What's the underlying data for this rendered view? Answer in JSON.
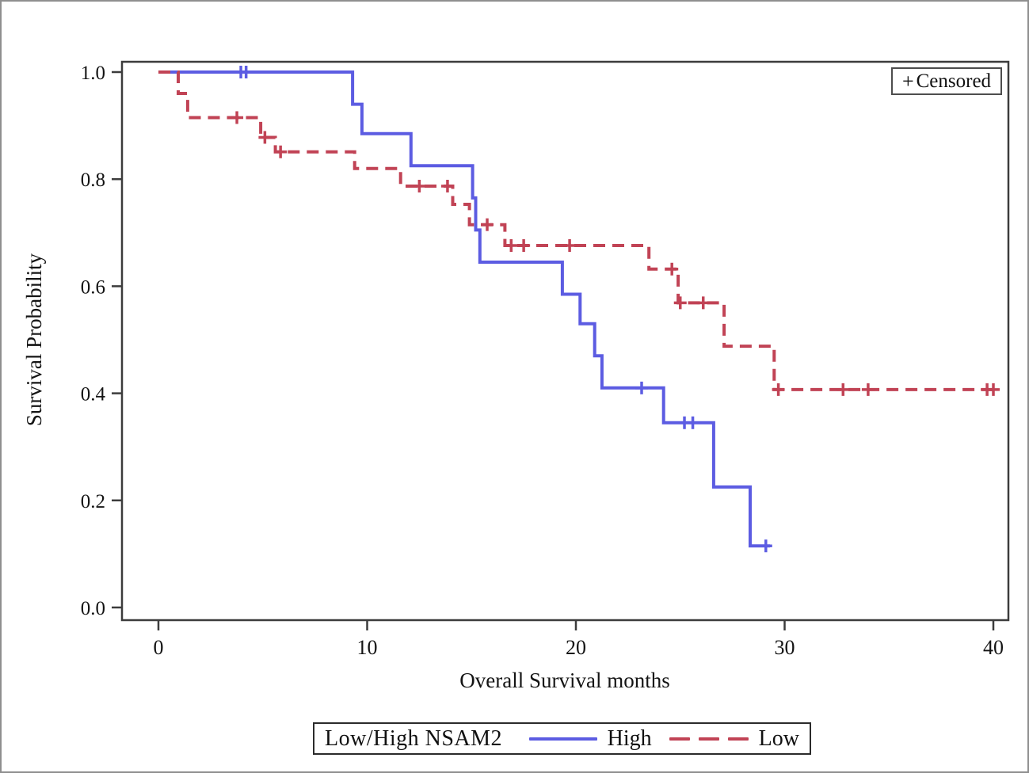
{
  "chart_data": {
    "type": "line",
    "subtype": "kaplan-meier-step-survival",
    "title": "",
    "xlabel": "Overall Survival months",
    "ylabel": "Survival Probability",
    "grid": false,
    "x_axis": {
      "range": [
        0,
        40
      ],
      "tick_values": [
        0,
        10,
        20,
        30,
        40
      ],
      "tick_labels": [
        "0",
        "10",
        "20",
        "30",
        "40"
      ]
    },
    "y_axis": {
      "range": [
        0,
        1
      ],
      "tick_values": [
        0,
        0.2,
        0.4,
        0.6,
        0.8,
        1.0
      ],
      "tick_labels": [
        "0.0",
        "0.2",
        "0.4",
        "0.6",
        "0.8",
        "1.0"
      ]
    },
    "legend": {
      "position": "bottom",
      "group_label": "Low/High NSAM2",
      "censored_symbol": "+",
      "censored_label": "Censored"
    },
    "series": [
      {
        "name": "High",
        "color": "#5c5ce2",
        "line_style": "solid",
        "survival_steps": [
          [
            0,
            1.0
          ],
          [
            9.3,
            0.94
          ],
          [
            9.75,
            0.885
          ],
          [
            12.1,
            0.825
          ],
          [
            15.05,
            0.765
          ],
          [
            15.2,
            0.705
          ],
          [
            15.4,
            0.645
          ],
          [
            19.35,
            0.585
          ],
          [
            20.2,
            0.53
          ],
          [
            20.9,
            0.47
          ],
          [
            21.25,
            0.41
          ],
          [
            24.2,
            0.345
          ],
          [
            26.6,
            0.225
          ],
          [
            28.35,
            0.115
          ]
        ],
        "end_time": 29.3,
        "censored_points": [
          [
            3.95,
            1.0
          ],
          [
            4.2,
            1.0
          ],
          [
            23.15,
            0.41
          ],
          [
            25.2,
            0.345
          ],
          [
            25.6,
            0.345
          ],
          [
            29.1,
            0.115
          ]
        ]
      },
      {
        "name": "Low",
        "color": "#c14355",
        "line_style": "dashed",
        "survival_steps": [
          [
            0,
            1.0
          ],
          [
            0.95,
            0.96
          ],
          [
            1.4,
            0.915
          ],
          [
            4.9,
            0.878
          ],
          [
            5.6,
            0.851
          ],
          [
            9.4,
            0.82
          ],
          [
            11.6,
            0.787
          ],
          [
            14.1,
            0.753
          ],
          [
            14.9,
            0.715
          ],
          [
            16.6,
            0.676
          ],
          [
            23.5,
            0.632
          ],
          [
            24.9,
            0.569
          ],
          [
            27.1,
            0.488
          ],
          [
            29.5,
            0.407
          ]
        ],
        "end_time": 40.1,
        "censored_points": [
          [
            3.76,
            0.915
          ],
          [
            5.1,
            0.878
          ],
          [
            5.85,
            0.851
          ],
          [
            12.5,
            0.787
          ],
          [
            13.85,
            0.787
          ],
          [
            15.75,
            0.715
          ],
          [
            16.9,
            0.676
          ],
          [
            17.5,
            0.676
          ],
          [
            19.7,
            0.676
          ],
          [
            24.6,
            0.632
          ],
          [
            25.0,
            0.569
          ],
          [
            26.1,
            0.569
          ],
          [
            29.7,
            0.407
          ],
          [
            32.8,
            0.407
          ],
          [
            34.0,
            0.407
          ],
          [
            39.7,
            0.407
          ],
          [
            40.0,
            0.407
          ]
        ]
      }
    ],
    "frame_color": "#3c3c3c",
    "text_color": "#141414"
  }
}
